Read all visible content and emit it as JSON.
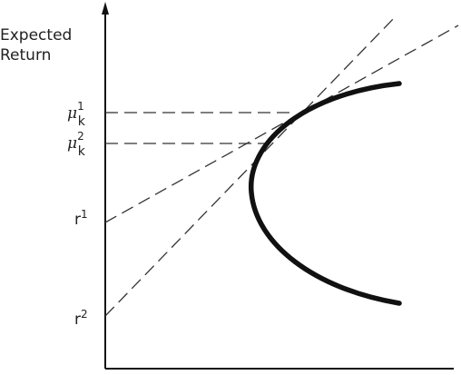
{
  "axis": {
    "y_label": [
      "Expected",
      "Return"
    ]
  },
  "levels": [
    {
      "symbol": "μ",
      "superscript": "1",
      "subscript": "k"
    },
    {
      "symbol": "μ",
      "superscript": "2",
      "subscript": "k"
    }
  ],
  "intercepts": [
    {
      "symbol": "r",
      "superscript": "1"
    },
    {
      "symbol": "r",
      "superscript": "2"
    }
  ]
}
